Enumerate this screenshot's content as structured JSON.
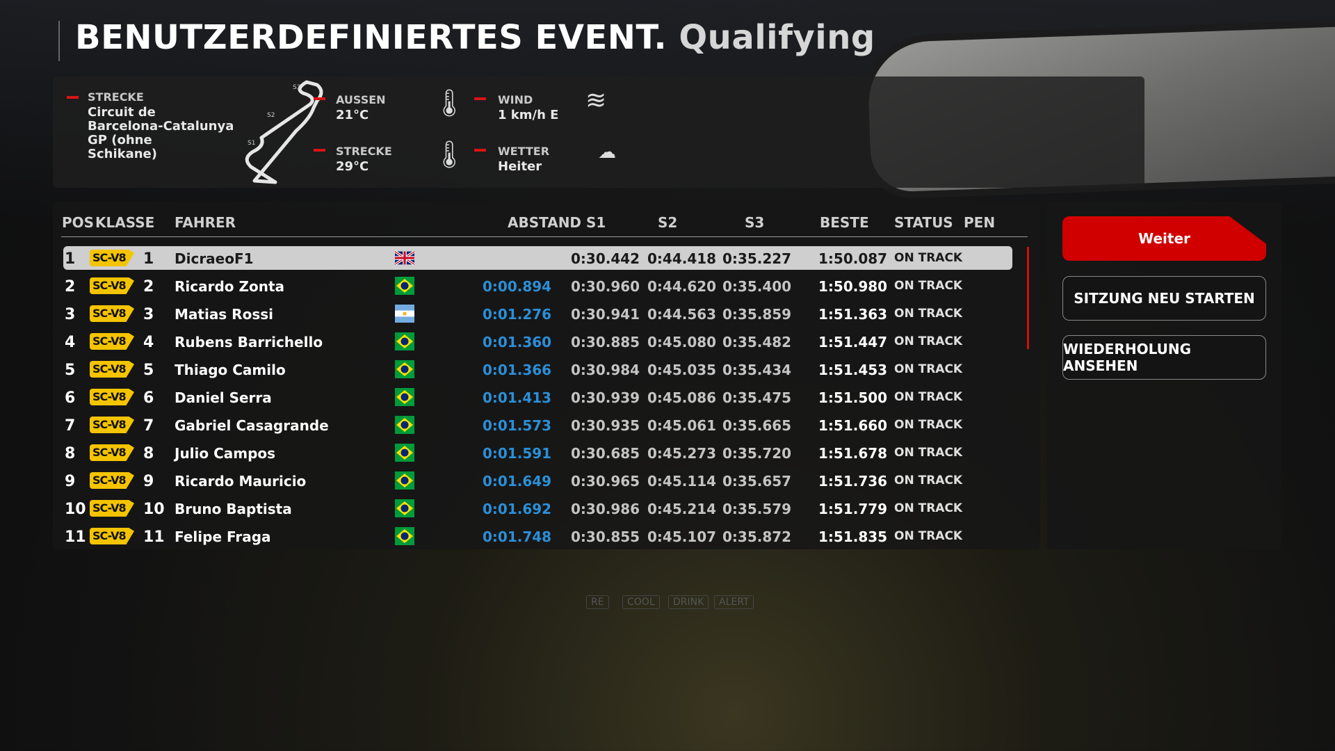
{
  "title": {
    "main": "BENUTZERDEFINIERTES EVENT.",
    "session": "Qualifying"
  },
  "info": {
    "track_label": "STRECKE",
    "track_lines": [
      "Circuit de",
      "Barcelona-Catalunya",
      "GP (ohne",
      "Schikane)"
    ],
    "sector_labels": [
      "S1",
      "S2",
      "S3"
    ],
    "ambient_label": "AUSSEN",
    "ambient_value": "21°C",
    "track_temp_label": "STRECKE",
    "track_temp_value": "29°C",
    "wind_label": "WIND",
    "wind_value": "1 km/h E",
    "weather_label": "WETTER",
    "weather_value": "Heiter",
    "icons": [
      "thermometer-icon",
      "wind-icon",
      "cloud-icon"
    ]
  },
  "table": {
    "headers": {
      "pos": "POS",
      "class": "KLASSE",
      "driver": "FAHRER",
      "gap": "ABSTAND",
      "s1": "S1",
      "s2": "S2",
      "s3": "S3",
      "best": "BESTE",
      "status": "STATUS",
      "pen": "PEN"
    },
    "rows": [
      {
        "pos": "1",
        "class": "SC-V8",
        "num": "1",
        "driver": "DicraeoF1",
        "flag": "uk",
        "gap": "",
        "s1": "0:30.442",
        "s2": "0:44.418",
        "s3": "0:35.227",
        "best": "1:50.087",
        "status": "ON TRACK",
        "selected": true
      },
      {
        "pos": "2",
        "class": "SC-V8",
        "num": "2",
        "driver": "Ricardo Zonta",
        "flag": "brazil",
        "gap": "0:00.894",
        "s1": "0:30.960",
        "s2": "0:44.620",
        "s3": "0:35.400",
        "best": "1:50.980",
        "status": "ON TRACK"
      },
      {
        "pos": "3",
        "class": "SC-V8",
        "num": "3",
        "driver": "Matias Rossi",
        "flag": "argentina",
        "gap": "0:01.276",
        "s1": "0:30.941",
        "s2": "0:44.563",
        "s3": "0:35.859",
        "best": "1:51.363",
        "status": "ON TRACK"
      },
      {
        "pos": "4",
        "class": "SC-V8",
        "num": "4",
        "driver": "Rubens Barrichello",
        "flag": "brazil",
        "gap": "0:01.360",
        "s1": "0:30.885",
        "s2": "0:45.080",
        "s3": "0:35.482",
        "best": "1:51.447",
        "status": "ON TRACK"
      },
      {
        "pos": "5",
        "class": "SC-V8",
        "num": "5",
        "driver": "Thiago Camilo",
        "flag": "brazil",
        "gap": "0:01.366",
        "s1": "0:30.984",
        "s2": "0:45.035",
        "s3": "0:35.434",
        "best": "1:51.453",
        "status": "ON TRACK"
      },
      {
        "pos": "6",
        "class": "SC-V8",
        "num": "6",
        "driver": "Daniel Serra",
        "flag": "brazil",
        "gap": "0:01.413",
        "s1": "0:30.939",
        "s2": "0:45.086",
        "s3": "0:35.475",
        "best": "1:51.500",
        "status": "ON TRACK"
      },
      {
        "pos": "7",
        "class": "SC-V8",
        "num": "7",
        "driver": "Gabriel Casagrande",
        "flag": "brazil",
        "gap": "0:01.573",
        "s1": "0:30.935",
        "s2": "0:45.061",
        "s3": "0:35.665",
        "best": "1:51.660",
        "status": "ON TRACK"
      },
      {
        "pos": "8",
        "class": "SC-V8",
        "num": "8",
        "driver": "Julio Campos",
        "flag": "brazil",
        "gap": "0:01.591",
        "s1": "0:30.685",
        "s2": "0:45.273",
        "s3": "0:35.720",
        "best": "1:51.678",
        "status": "ON TRACK"
      },
      {
        "pos": "9",
        "class": "SC-V8",
        "num": "9",
        "driver": "Ricardo Mauricio",
        "flag": "brazil",
        "gap": "0:01.649",
        "s1": "0:30.965",
        "s2": "0:45.114",
        "s3": "0:35.657",
        "best": "1:51.736",
        "status": "ON TRACK"
      },
      {
        "pos": "10",
        "class": "SC-V8",
        "num": "10",
        "driver": "Bruno Baptista",
        "flag": "brazil",
        "gap": "0:01.692",
        "s1": "0:30.986",
        "s2": "0:45.214",
        "s3": "0:35.579",
        "best": "1:51.779",
        "status": "ON TRACK"
      },
      {
        "pos": "11",
        "class": "SC-V8",
        "num": "11",
        "driver": "Felipe Fraga",
        "flag": "brazil",
        "gap": "0:01.748",
        "s1": "0:30.855",
        "s2": "0:45.107",
        "s3": "0:35.872",
        "best": "1:51.835",
        "status": "ON TRACK"
      }
    ]
  },
  "actions": {
    "continue": "Weiter",
    "restart": "SITZUNG NEU STARTEN",
    "replay": "WIEDERHOLUNG ANSEHEN"
  },
  "dashboard": [
    "RE",
    "COOL",
    "DRINK",
    "ALERT"
  ],
  "colors": {
    "accent": "#d00000",
    "gap": "#2b8fd8",
    "class_badge": "#f5c400"
  }
}
